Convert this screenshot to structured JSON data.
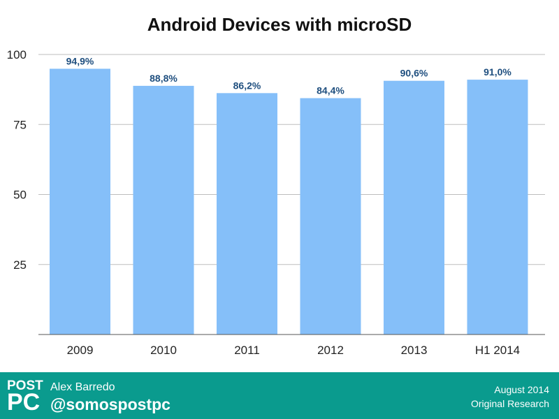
{
  "chart_data": {
    "type": "bar",
    "title": "Android Devices with microSD",
    "categories": [
      "2009",
      "2010",
      "2011",
      "2012",
      "2013",
      "H1 2014"
    ],
    "values": [
      94.9,
      88.8,
      86.2,
      84.4,
      90.6,
      91.0
    ],
    "data_labels": [
      "94,9%",
      "88,8%",
      "86,2%",
      "84,4%",
      "90,6%",
      "91,0%"
    ],
    "yticks": [
      25,
      50,
      75,
      100
    ],
    "ylim": [
      0,
      100
    ],
    "xlabel": "",
    "ylabel": "",
    "grid": true,
    "bar_color": "#85bff9",
    "label_color": "#1f4f7f"
  },
  "footer": {
    "logo_top": "POST",
    "logo_bottom": "PC",
    "author": "Alex Barredo",
    "handle": "@somospostpc",
    "date": "August 2014",
    "source": "Original Research",
    "background_color": "#0a9b8e"
  }
}
